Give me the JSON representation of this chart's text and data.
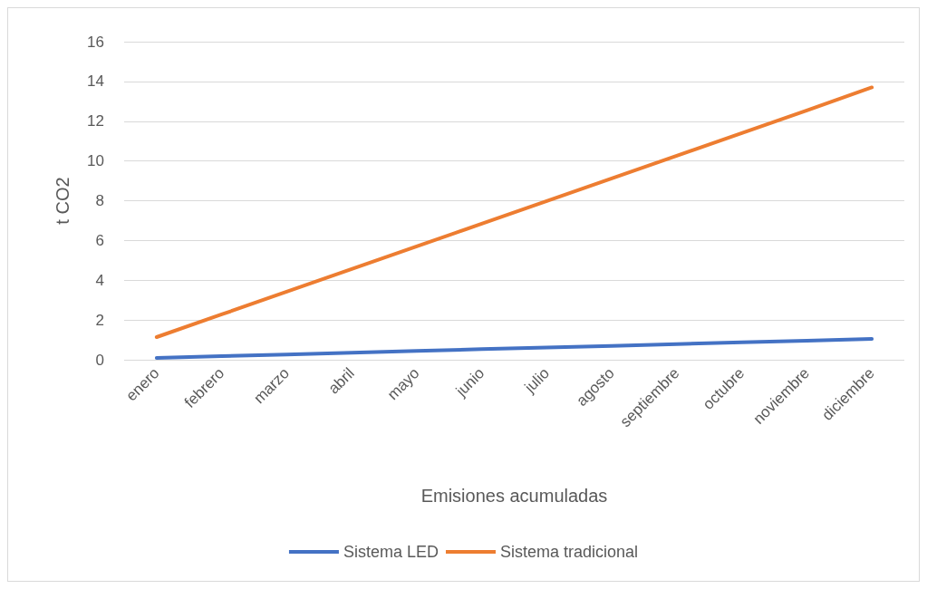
{
  "chart_data": {
    "type": "line",
    "xlabel": "Emisiones acumuladas",
    "ylabel": "t CO2",
    "categories": [
      "enero",
      "febrero",
      "marzo",
      "abril",
      "mayo",
      "junio",
      "julio",
      "agosto",
      "septiembre",
      "octubre",
      "noviembre",
      "diciembre"
    ],
    "series": [
      {
        "name": "Sistema LED",
        "color": "#4472c4",
        "values": [
          0.09,
          0.18,
          0.26,
          0.35,
          0.44,
          0.53,
          0.61,
          0.7,
          0.79,
          0.88,
          0.96,
          1.05
        ]
      },
      {
        "name": "Sistema tradicional",
        "color": "#ed7d31",
        "values": [
          1.14,
          2.28,
          3.42,
          4.56,
          5.7,
          6.84,
          7.98,
          9.12,
          10.26,
          11.4,
          12.54,
          13.7
        ]
      }
    ],
    "ylim": [
      0,
      16
    ],
    "yticks": [
      0,
      2,
      4,
      6,
      8,
      10,
      12,
      14,
      16
    ],
    "grid": "y",
    "legend": "bottom",
    "marker": "none",
    "line_style": "solid"
  }
}
